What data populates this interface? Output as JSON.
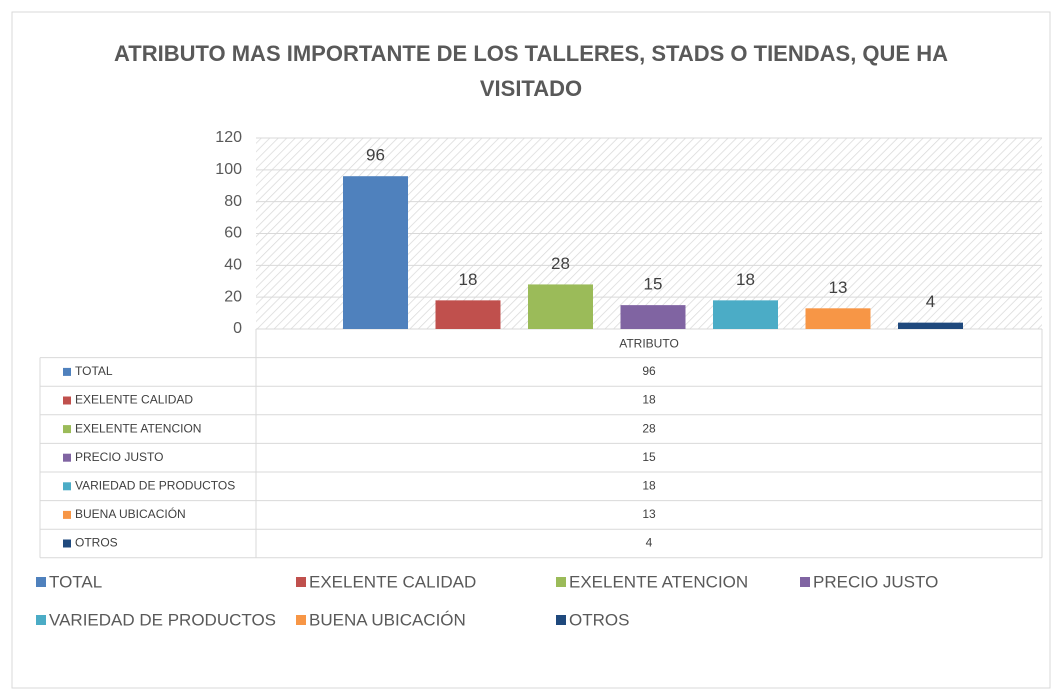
{
  "chart_data": {
    "type": "bar",
    "title": "ATRIBUTO MAS IMPORTANTE DE LOS TALLERES, STADS O TIENDAS, QUE HA VISITADO",
    "categories": [
      "ATRIBUTO"
    ],
    "series": [
      {
        "name": "TOTAL",
        "color": "#4f81bd",
        "values": [
          96
        ]
      },
      {
        "name": "EXELENTE CALIDAD",
        "color": "#c0504d",
        "values": [
          18
        ]
      },
      {
        "name": "EXELENTE ATENCION",
        "color": "#9bbb59",
        "values": [
          28
        ]
      },
      {
        "name": "PRECIO JUSTO",
        "color": "#8064a2",
        "values": [
          15
        ]
      },
      {
        "name": "VARIEDAD DE PRODUCTOS",
        "color": "#4bacc6",
        "values": [
          18
        ]
      },
      {
        "name": "BUENA UBICACIÓN",
        "color": "#f79646",
        "values": [
          13
        ]
      },
      {
        "name": "OTROS",
        "color": "#1f497d",
        "values": [
          4
        ]
      }
    ],
    "ylim": [
      0,
      120
    ],
    "yticks": [
      0,
      20,
      40,
      60,
      80,
      100,
      120
    ],
    "grid": true,
    "legend": "bottom"
  }
}
